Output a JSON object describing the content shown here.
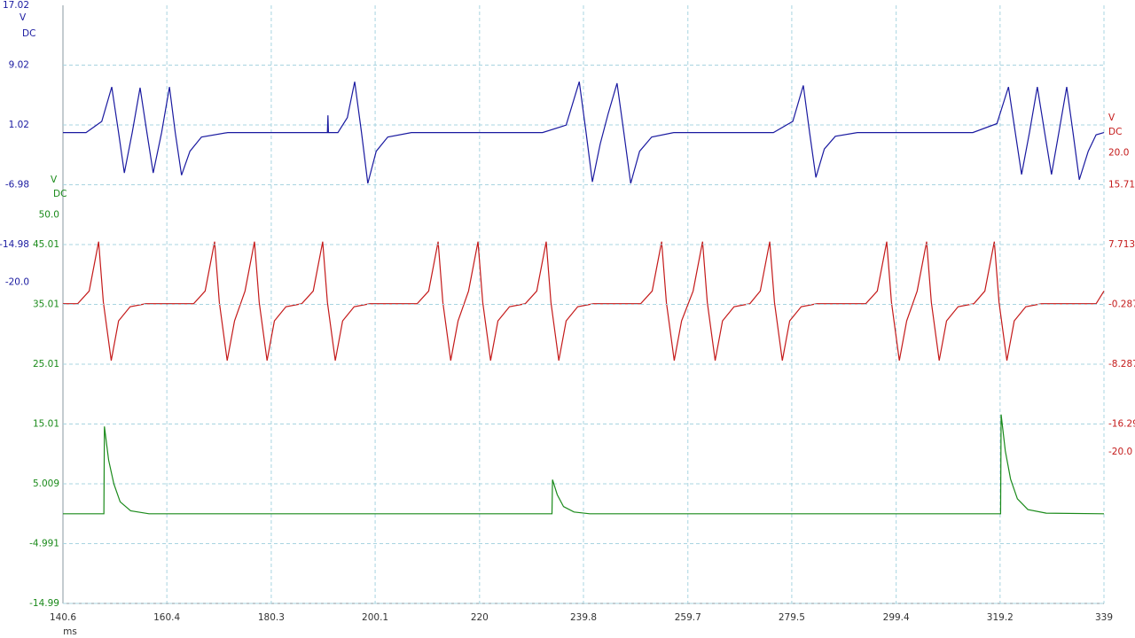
{
  "chart_data": [
    {
      "type": "line",
      "color": "#1a1aa0",
      "ylabel": [
        "V",
        "DC"
      ],
      "xlabel": "ms",
      "grid": true,
      "xlim": [
        140.6,
        339.0
      ],
      "xticks": [
        140.6,
        160.4,
        180.3,
        200.1,
        220.0,
        239.8,
        259.7,
        279.5,
        299.4,
        319.2,
        339.0
      ],
      "ylim": [
        -62.98,
        17.02
      ],
      "yticks": [
        17.02,
        9.02,
        1.02,
        -6.98,
        -14.98,
        {
          "value": -20,
          "label": "-20.0"
        }
      ],
      "x": [
        140.6,
        145.0,
        148.0,
        149.9,
        151.2,
        152.3,
        153.8,
        155.3,
        156.6,
        157.8,
        159.4,
        160.9,
        162.0,
        163.2,
        164.8,
        167.0,
        172,
        191.0,
        191.1,
        191.2,
        193.0,
        194.8,
        196.2,
        197.5,
        198.7,
        200.3,
        202.5,
        207,
        232,
        236.5,
        239.0,
        240.3,
        241.5,
        243.0,
        244.5,
        246.2,
        247.5,
        248.8,
        250.5,
        252.8,
        257,
        276,
        279.7,
        281.7,
        282.9,
        284.1,
        285.7,
        287.8,
        292,
        314,
        318.6,
        320.8,
        322.1,
        323.3,
        324.8,
        326.3,
        327.7,
        329.0,
        330.4,
        331.9,
        333.1,
        334.3,
        336.0,
        337.5,
        339.0
      ],
      "values": [
        0,
        0,
        1.5,
        6.1,
        0,
        -5.4,
        0,
        6.0,
        0,
        -5.4,
        0,
        6.1,
        0,
        -5.7,
        -2.5,
        -0.6,
        0,
        0,
        2.3,
        0,
        0,
        2.0,
        6.8,
        0,
        -6.8,
        -2.5,
        -0.6,
        0,
        0,
        1.0,
        6.8,
        0,
        -6.6,
        -1.5,
        2.5,
        6.6,
        0,
        -6.8,
        -2.5,
        -0.6,
        0,
        0,
        1.5,
        6.3,
        0,
        -6.0,
        -2.2,
        -0.5,
        0,
        0,
        1.2,
        6.1,
        0,
        -5.6,
        0,
        6.1,
        0,
        -5.6,
        0,
        6.1,
        0,
        -6.3,
        -2.5,
        -0.3,
        0
      ]
    },
    {
      "type": "line",
      "color": "#c41a1a",
      "ylabel": [
        "V",
        "DC"
      ],
      "xlim": [
        140.6,
        339.0
      ],
      "ylim": [
        -40.287,
        39.713
      ],
      "yticks": [
        {
          "value": 20,
          "label": "20.0"
        },
        15.71,
        7.713,
        -0.287,
        -8.287,
        -16.29,
        {
          "value": -20,
          "label": "-20.0"
        }
      ],
      "x": [
        140.6,
        143.4,
        145.6,
        147.4,
        148.3,
        149.8,
        151.2,
        153.4,
        156.4,
        165.5,
        167.7,
        169.5,
        170.4,
        171.9,
        173.3,
        175.3,
        177.1,
        178.0,
        179.5,
        180.9,
        183.1,
        186.1,
        188.3,
        190.1,
        191.0,
        192.5,
        193.9,
        196.1,
        199.1,
        208.1,
        210.3,
        212.1,
        213.0,
        214.5,
        215.9,
        217.9,
        219.7,
        220.6,
        222.1,
        223.5,
        225.7,
        228.7,
        230.9,
        232.7,
        233.6,
        235.1,
        236.5,
        238.7,
        241.7,
        250.7,
        252.9,
        254.7,
        255.6,
        257.1,
        258.5,
        260.7,
        262.5,
        263.4,
        264.9,
        266.3,
        268.5,
        271.5,
        273.5,
        275.3,
        276.2,
        277.7,
        279.1,
        281.3,
        284.3,
        293.6,
        295.8,
        297.6,
        298.5,
        300.0,
        301.4,
        303.4,
        305.2,
        306.1,
        307.6,
        309.0,
        311.2,
        314.2,
        316.3,
        318.1,
        319.0,
        320.5,
        321.9,
        324.1,
        327.1,
        337.5,
        339.0
      ],
      "values": [
        -0.2,
        -0.2,
        1.5,
        8.1,
        0,
        -7.8,
        -2.5,
        -0.6,
        -0.2,
        -0.2,
        1.5,
        8.1,
        0,
        -7.8,
        -2.5,
        1.5,
        8.1,
        0,
        -7.8,
        -2.5,
        -0.6,
        -0.2,
        1.5,
        8.1,
        0,
        -7.8,
        -2.5,
        -0.6,
        -0.2,
        -0.2,
        1.5,
        8.1,
        0,
        -7.8,
        -2.5,
        1.5,
        8.1,
        0,
        -7.8,
        -2.5,
        -0.6,
        -0.2,
        1.5,
        8.1,
        0,
        -7.8,
        -2.5,
        -0.6,
        -0.2,
        -0.2,
        1.5,
        8.1,
        0,
        -7.8,
        -2.5,
        1.5,
        8.1,
        0,
        -7.8,
        -2.5,
        -0.6,
        -0.2,
        1.5,
        8.1,
        0,
        -7.8,
        -2.5,
        -0.6,
        -0.2,
        -0.2,
        1.5,
        8.1,
        0,
        -7.8,
        -2.5,
        1.5,
        8.1,
        0,
        -7.8,
        -2.5,
        -0.6,
        -0.2,
        1.5,
        8.1,
        0,
        -7.8,
        -2.5,
        -0.6,
        -0.2,
        -0.2,
        1.5
      ]
    },
    {
      "type": "line",
      "color": "#1a8a1a",
      "ylabel": [
        "V",
        "DC"
      ],
      "grid": true,
      "xlim": [
        140.6,
        339.0
      ],
      "ylim": [
        -14.99,
        85.01
      ],
      "yticks": [
        {
          "value": 50,
          "label": "50.0"
        },
        45.01,
        35.01,
        25.01,
        15.01,
        5.009,
        -4.991,
        -14.99
      ],
      "x": [
        140.6,
        148.4,
        148.5,
        149.3,
        150.3,
        151.5,
        153.5,
        157,
        233.8,
        233.9,
        234.8,
        236,
        238,
        241,
        319.3,
        319.4,
        320.2,
        321.2,
        322.5,
        324.5,
        328,
        339.0
      ],
      "values": [
        0,
        0,
        14.6,
        9,
        5,
        2,
        0.5,
        0,
        0,
        5.7,
        3.2,
        1.2,
        0.3,
        0,
        0,
        16.6,
        10.5,
        5.8,
        2.5,
        0.7,
        0.1,
        0
      ]
    }
  ]
}
